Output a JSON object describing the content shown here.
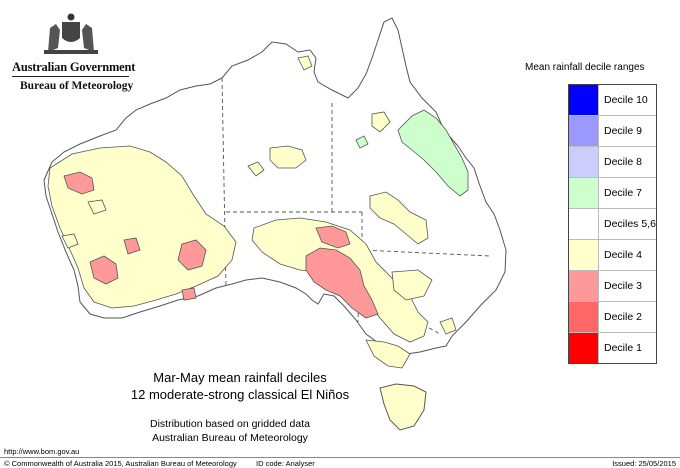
{
  "header": {
    "government": "Australian Government",
    "bureau": "Bureau of Meteorology"
  },
  "legend": {
    "title": "Mean rainfall decile ranges",
    "items": [
      {
        "label": "Decile 10",
        "color": "#0000ff"
      },
      {
        "label": "Decile 9",
        "color": "#9999ff"
      },
      {
        "label": "Decile 8",
        "color": "#ccccff"
      },
      {
        "label": "Decile 7",
        "color": "#ccffcc"
      },
      {
        "label": "Deciles 5,6",
        "color": "#ffffff"
      },
      {
        "label": "Decile 4",
        "color": "#ffffcc"
      },
      {
        "label": "Decile 3",
        "color": "#ff9999"
      },
      {
        "label": "Decile 2",
        "color": "#ff6666"
      },
      {
        "label": "Decile 1",
        "color": "#ff0000"
      }
    ]
  },
  "caption": {
    "line1": "Mar-May mean rainfall deciles",
    "line2": "12 moderate-strong classical El Niños"
  },
  "note": {
    "line1": "Distribution based on gridded data",
    "line2": "Australian Bureau of Meteorology"
  },
  "footer": {
    "url": "http://www.bom.gov.au",
    "copyright": "© Commonwealth of Australia 2015, Australian Bureau of Meteorology",
    "id_code": "ID code: Analyser",
    "issued": "Issued: 25/05/2015"
  },
  "map": {
    "colors": {
      "outline": "#555555",
      "border": "#555555",
      "decile4": "#ffffcc",
      "decile3": "#ff9999",
      "decile7": "#ccffcc"
    }
  }
}
